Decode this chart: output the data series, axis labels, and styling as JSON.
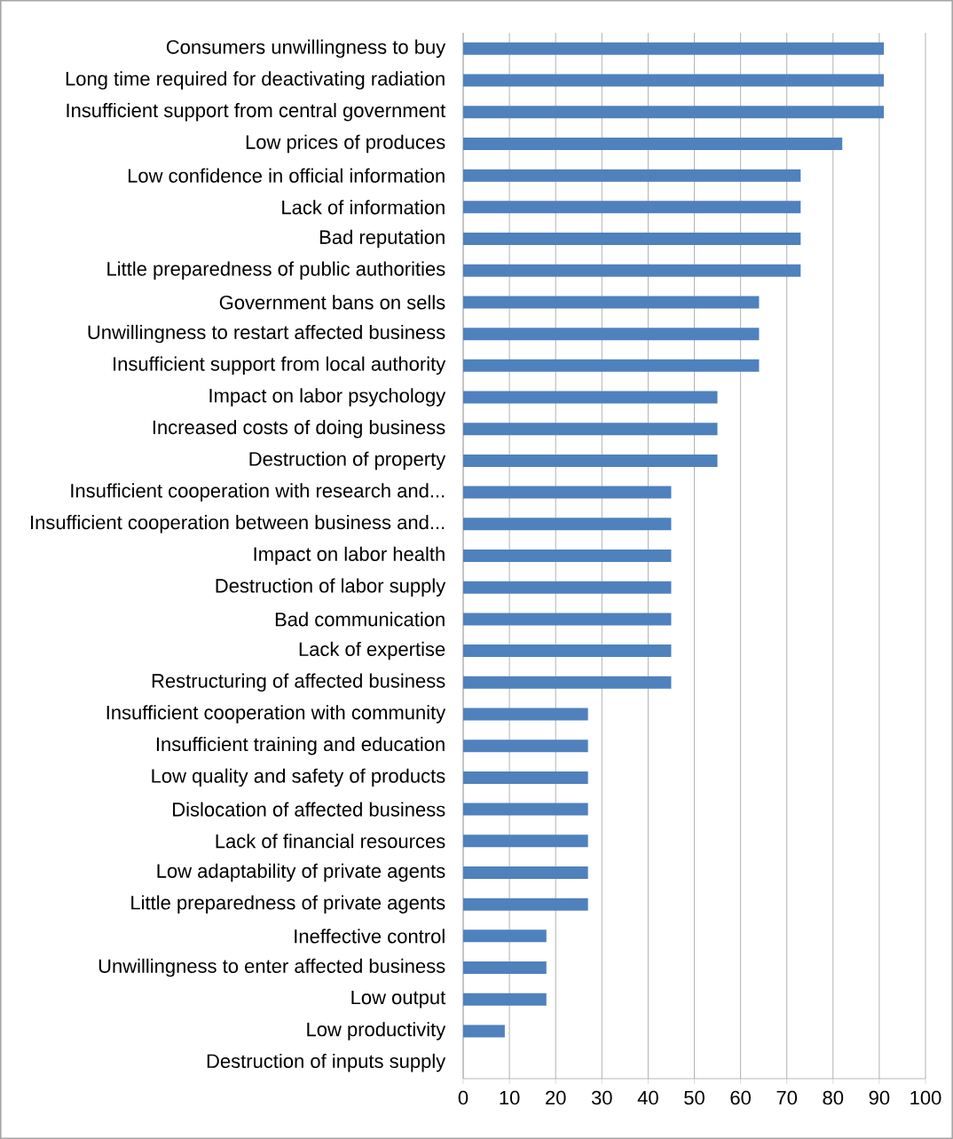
{
  "chart_data": {
    "type": "bar",
    "orientation": "horizontal",
    "categories": [
      "Consumers unwillingness to buy",
      "Long time required for deactivating radiation",
      "Insufficient support from central government",
      "Low prices of produces",
      "Low confidence in official information",
      "Lack of information",
      "Bad reputation",
      "Little preparedness of public authorities",
      "Government bans on sells",
      "Unwillingness to restart affected business",
      "Insufficient support from local authority",
      "Impact on labor psychology",
      "Increased costs of doing business",
      "Destruction of property",
      "Insufficient cooperation with research and...",
      "Insufficient cooperation between business and...",
      "Impact on labor health",
      "Destruction of labor supply",
      "Bad communication",
      "Lack of expertise",
      "Restructuring of affected business",
      "Insufficient cooperation with community",
      "Insufficient training and education",
      "Low quality and safety of products",
      "Dislocation of affected business",
      "Lack of financial resources",
      "Low adaptability of private agents",
      "Little preparedness of private agents",
      "Ineffective control",
      "Unwillingness to enter affected business",
      "Low output",
      "Low productivity",
      "Destruction of inputs supply"
    ],
    "values": [
      91,
      91,
      91,
      82,
      73,
      73,
      73,
      73,
      64,
      64,
      64,
      55,
      55,
      55,
      45,
      45,
      45,
      45,
      45,
      45,
      45,
      27,
      27,
      27,
      27,
      27,
      27,
      27,
      18,
      18,
      18,
      9,
      0
    ],
    "color": "#4f81bd",
    "xlim": [
      0,
      100
    ],
    "xticks": [
      0,
      10,
      20,
      30,
      40,
      50,
      60,
      70,
      80,
      90,
      100
    ],
    "grid": "x"
  }
}
